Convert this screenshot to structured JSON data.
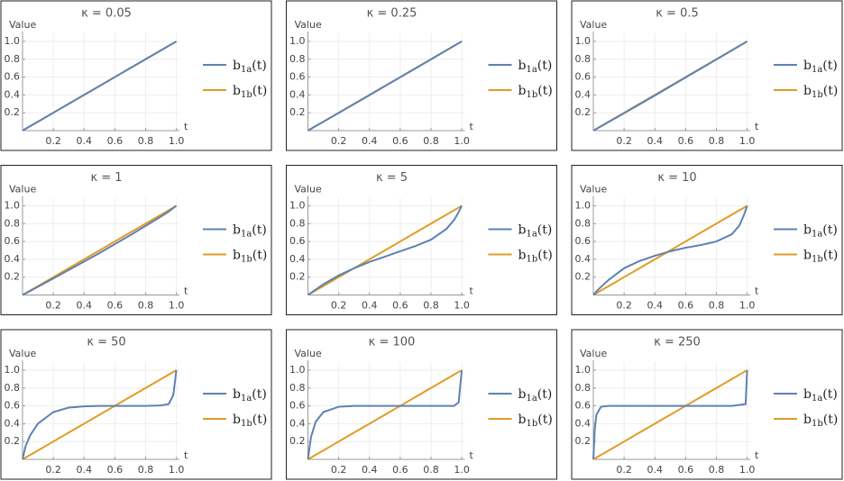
{
  "chart_data": [
    {
      "type": "line",
      "title": "κ = 0.05",
      "y_label": "Value",
      "x_label": "t",
      "x": [
        0,
        0.02,
        0.05,
        0.1,
        0.2,
        0.3,
        0.4,
        0.5,
        0.6,
        0.7,
        0.8,
        0.9,
        0.95,
        0.98,
        1
      ],
      "series": [
        {
          "name": "b1a(t)",
          "color": "#5e81b5",
          "values": [
            0,
            0.02,
            0.05,
            0.1,
            0.2,
            0.3,
            0.4,
            0.5,
            0.6,
            0.7,
            0.8,
            0.9,
            0.95,
            0.98,
            1
          ]
        },
        {
          "name": "b1b(t)",
          "color": "#e19c24",
          "values": [
            0,
            0.02,
            0.05,
            0.1,
            0.2,
            0.3,
            0.4,
            0.5,
            0.6,
            0.7,
            0.8,
            0.9,
            0.95,
            0.98,
            1
          ]
        }
      ],
      "xlim": [
        0,
        1.02
      ],
      "ylim": [
        0,
        1.05
      ],
      "xticks": [
        0.2,
        0.4,
        0.6,
        0.8,
        {
          "value": 1,
          "label": "1.0"
        }
      ],
      "yticks": [
        0.2,
        0.4,
        0.6,
        0.8,
        {
          "value": 1,
          "label": "1.0"
        }
      ],
      "grid": true
    },
    {
      "type": "line",
      "title": "κ = 0.25",
      "y_label": "Value",
      "x_label": "t",
      "x": [
        0,
        0.02,
        0.05,
        0.1,
        0.2,
        0.3,
        0.4,
        0.5,
        0.6,
        0.7,
        0.8,
        0.9,
        0.95,
        0.98,
        1
      ],
      "series": [
        {
          "name": "b1a(t)",
          "color": "#5e81b5",
          "values": [
            0,
            0.02,
            0.05,
            0.099,
            0.198,
            0.298,
            0.398,
            0.498,
            0.598,
            0.698,
            0.799,
            0.9,
            0.95,
            0.98,
            1
          ]
        },
        {
          "name": "b1b(t)",
          "color": "#e19c24",
          "values": [
            0,
            0.02,
            0.05,
            0.1,
            0.2,
            0.3,
            0.4,
            0.5,
            0.6,
            0.7,
            0.8,
            0.9,
            0.95,
            0.98,
            1
          ]
        }
      ],
      "xlim": [
        0,
        1.02
      ],
      "ylim": [
        0,
        1.05
      ],
      "xticks": [
        0.2,
        0.4,
        0.6,
        0.8,
        {
          "value": 1,
          "label": "1.0"
        }
      ],
      "yticks": [
        0.2,
        0.4,
        0.6,
        0.8,
        {
          "value": 1,
          "label": "1.0"
        }
      ],
      "grid": true
    },
    {
      "type": "line",
      "title": "κ = 0.5",
      "y_label": "Value",
      "x_label": "t",
      "x": [
        0,
        0.02,
        0.05,
        0.1,
        0.2,
        0.3,
        0.4,
        0.5,
        0.6,
        0.7,
        0.8,
        0.9,
        0.95,
        0.98,
        1
      ],
      "series": [
        {
          "name": "b1a(t)",
          "color": "#5e81b5",
          "values": [
            0,
            0.019,
            0.048,
            0.097,
            0.195,
            0.294,
            0.394,
            0.495,
            0.596,
            0.697,
            0.798,
            0.899,
            0.95,
            0.98,
            1
          ]
        },
        {
          "name": "b1b(t)",
          "color": "#e19c24",
          "values": [
            0,
            0.02,
            0.05,
            0.1,
            0.2,
            0.3,
            0.4,
            0.5,
            0.6,
            0.7,
            0.8,
            0.9,
            0.95,
            0.98,
            1
          ]
        }
      ],
      "xlim": [
        0,
        1.02
      ],
      "ylim": [
        0,
        1.05
      ],
      "xticks": [
        0.2,
        0.4,
        0.6,
        0.8,
        {
          "value": 1,
          "label": "1.0"
        }
      ],
      "yticks": [
        0.2,
        0.4,
        0.6,
        0.8,
        {
          "value": 1,
          "label": "1.0"
        }
      ],
      "grid": true
    },
    {
      "type": "line",
      "title": "κ = 1",
      "y_label": "Value",
      "x_label": "t",
      "x": [
        0,
        0.02,
        0.05,
        0.1,
        0.2,
        0.3,
        0.4,
        0.5,
        0.6,
        0.7,
        0.8,
        0.9,
        0.95,
        0.98,
        1
      ],
      "series": [
        {
          "name": "b1a(t)",
          "color": "#5e81b5",
          "values": [
            0,
            0.018,
            0.045,
            0.092,
            0.185,
            0.28,
            0.375,
            0.47,
            0.57,
            0.67,
            0.775,
            0.88,
            0.935,
            0.975,
            1
          ]
        },
        {
          "name": "b1b(t)",
          "color": "#e19c24",
          "values": [
            0,
            0.02,
            0.05,
            0.1,
            0.2,
            0.3,
            0.4,
            0.5,
            0.6,
            0.7,
            0.8,
            0.9,
            0.95,
            0.98,
            1
          ]
        }
      ],
      "xlim": [
        0,
        1.02
      ],
      "ylim": [
        0,
        1.05
      ],
      "xticks": [
        0.2,
        0.4,
        0.6,
        0.8,
        {
          "value": 1,
          "label": "1.0"
        }
      ],
      "yticks": [
        0.2,
        0.4,
        0.6,
        0.8,
        {
          "value": 1,
          "label": "1.0"
        }
      ],
      "grid": true
    },
    {
      "type": "line",
      "title": "κ = 5",
      "y_label": "Value",
      "x_label": "t",
      "x": [
        0,
        0.02,
        0.05,
        0.1,
        0.2,
        0.3,
        0.4,
        0.5,
        0.6,
        0.7,
        0.8,
        0.9,
        0.95,
        0.98,
        1
      ],
      "series": [
        {
          "name": "b1a(t)",
          "color": "#5e81b5",
          "values": [
            0,
            0.025,
            0.06,
            0.12,
            0.22,
            0.3,
            0.37,
            0.43,
            0.49,
            0.55,
            0.62,
            0.74,
            0.84,
            0.93,
            1
          ]
        },
        {
          "name": "b1b(t)",
          "color": "#e19c24",
          "values": [
            0,
            0.02,
            0.05,
            0.1,
            0.2,
            0.3,
            0.4,
            0.5,
            0.6,
            0.7,
            0.8,
            0.9,
            0.95,
            0.98,
            1
          ]
        }
      ],
      "xlim": [
        0,
        1.02
      ],
      "ylim": [
        0,
        1.05
      ],
      "xticks": [
        0.2,
        0.4,
        0.6,
        0.8,
        {
          "value": 1,
          "label": "1.0"
        }
      ],
      "yticks": [
        0.2,
        0.4,
        0.6,
        0.8,
        {
          "value": 1,
          "label": "1.0"
        }
      ],
      "grid": true
    },
    {
      "type": "line",
      "title": "κ = 10",
      "y_label": "Value",
      "x_label": "t",
      "x": [
        0,
        0.02,
        0.05,
        0.1,
        0.2,
        0.3,
        0.4,
        0.5,
        0.6,
        0.7,
        0.8,
        0.9,
        0.95,
        0.98,
        1
      ],
      "series": [
        {
          "name": "b1a(t)",
          "color": "#5e81b5",
          "values": [
            0,
            0.04,
            0.09,
            0.17,
            0.3,
            0.38,
            0.44,
            0.49,
            0.53,
            0.56,
            0.6,
            0.68,
            0.78,
            0.9,
            1
          ]
        },
        {
          "name": "b1b(t)",
          "color": "#e19c24",
          "values": [
            0,
            0.02,
            0.05,
            0.1,
            0.2,
            0.3,
            0.4,
            0.5,
            0.6,
            0.7,
            0.8,
            0.9,
            0.95,
            0.98,
            1
          ]
        }
      ],
      "xlim": [
        0,
        1.02
      ],
      "ylim": [
        0,
        1.05
      ],
      "xticks": [
        0.2,
        0.4,
        0.6,
        0.8,
        {
          "value": 1,
          "label": "1.0"
        }
      ],
      "yticks": [
        0.2,
        0.4,
        0.6,
        0.8,
        {
          "value": 1,
          "label": "1.0"
        }
      ],
      "grid": true
    },
    {
      "type": "line",
      "title": "κ = 50",
      "y_label": "Value",
      "x_label": "t",
      "x": [
        0,
        0.02,
        0.05,
        0.1,
        0.2,
        0.3,
        0.4,
        0.5,
        0.6,
        0.7,
        0.8,
        0.9,
        0.95,
        0.98,
        1
      ],
      "series": [
        {
          "name": "b1a(t)",
          "color": "#5e81b5",
          "values": [
            0,
            0.15,
            0.27,
            0.4,
            0.53,
            0.58,
            0.595,
            0.6,
            0.6,
            0.6,
            0.6,
            0.605,
            0.62,
            0.72,
            1
          ]
        },
        {
          "name": "b1b(t)",
          "color": "#e19c24",
          "values": [
            0,
            0.02,
            0.05,
            0.1,
            0.2,
            0.3,
            0.4,
            0.5,
            0.6,
            0.7,
            0.8,
            0.9,
            0.95,
            0.98,
            1
          ]
        }
      ],
      "xlim": [
        0,
        1.02
      ],
      "ylim": [
        0,
        1.05
      ],
      "xticks": [
        0.2,
        0.4,
        0.6,
        0.8,
        {
          "value": 1,
          "label": "1.0"
        }
      ],
      "yticks": [
        0.2,
        0.4,
        0.6,
        0.8,
        {
          "value": 1,
          "label": "1.0"
        }
      ],
      "grid": true
    },
    {
      "type": "line",
      "title": "κ = 100",
      "y_label": "Value",
      "x_label": "t",
      "x": [
        0,
        0.02,
        0.05,
        0.1,
        0.2,
        0.3,
        0.4,
        0.5,
        0.6,
        0.7,
        0.8,
        0.9,
        0.95,
        0.98,
        1
      ],
      "series": [
        {
          "name": "b1a(t)",
          "color": "#5e81b5",
          "values": [
            0,
            0.25,
            0.42,
            0.53,
            0.59,
            0.6,
            0.6,
            0.6,
            0.6,
            0.6,
            0.6,
            0.6,
            0.6,
            0.64,
            1
          ]
        },
        {
          "name": "b1b(t)",
          "color": "#e19c24",
          "values": [
            0,
            0.02,
            0.05,
            0.1,
            0.2,
            0.3,
            0.4,
            0.5,
            0.6,
            0.7,
            0.8,
            0.9,
            0.95,
            0.98,
            1
          ]
        }
      ],
      "xlim": [
        0,
        1.02
      ],
      "ylim": [
        0,
        1.05
      ],
      "xticks": [
        0.2,
        0.4,
        0.6,
        0.8,
        {
          "value": 1,
          "label": "1.0"
        }
      ],
      "yticks": [
        0.2,
        0.4,
        0.6,
        0.8,
        {
          "value": 1,
          "label": "1.0"
        }
      ],
      "grid": true
    },
    {
      "type": "line",
      "title": "κ = 250",
      "y_label": "Value",
      "x_label": "t",
      "x": [
        0,
        0.01,
        0.02,
        0.05,
        0.1,
        0.2,
        0.3,
        0.4,
        0.5,
        0.6,
        0.7,
        0.8,
        0.9,
        0.99,
        1
      ],
      "series": [
        {
          "name": "b1a(t)",
          "color": "#5e81b5",
          "values": [
            0,
            0.35,
            0.5,
            0.59,
            0.6,
            0.6,
            0.6,
            0.6,
            0.6,
            0.6,
            0.6,
            0.6,
            0.6,
            0.62,
            1
          ]
        },
        {
          "name": "b1b(t)",
          "color": "#e19c24",
          "values": [
            0,
            0.01,
            0.02,
            0.05,
            0.1,
            0.2,
            0.3,
            0.4,
            0.5,
            0.6,
            0.7,
            0.8,
            0.9,
            0.99,
            1
          ]
        }
      ],
      "xlim": [
        0,
        1.02
      ],
      "ylim": [
        0,
        1.05
      ],
      "xticks": [
        0.2,
        0.4,
        0.6,
        0.8,
        {
          "value": 1,
          "label": "1.0"
        }
      ],
      "yticks": [
        0.2,
        0.4,
        0.6,
        0.8,
        {
          "value": 1,
          "label": "1.0"
        }
      ],
      "grid": true
    }
  ]
}
